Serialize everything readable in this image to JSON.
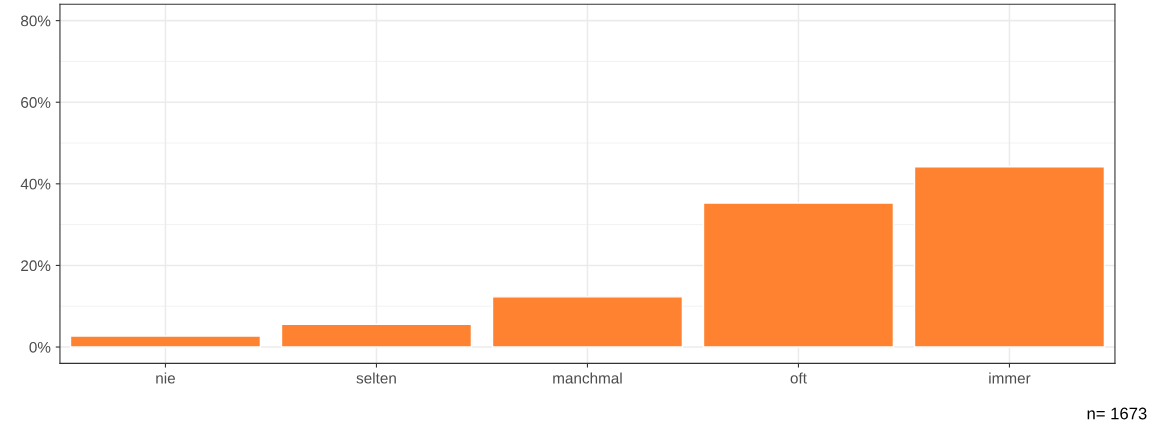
{
  "chart_data": {
    "type": "bar",
    "categories": [
      "nie",
      "selten",
      "manchmal",
      "oft",
      "immer"
    ],
    "values": [
      2.7,
      5.6,
      12.3,
      35.3,
      44.2
    ],
    "color": "#ff8230",
    "ylim": [
      -4,
      84
    ],
    "yticks": [
      {
        "value": 0,
        "label": "0%"
      },
      {
        "value": 20,
        "label": "20%"
      },
      {
        "value": 40,
        "label": "40%"
      },
      {
        "value": 60,
        "label": "60%"
      },
      {
        "value": 80,
        "label": "80%"
      }
    ],
    "grid": true,
    "annotations": [
      "n= 1673"
    ]
  }
}
